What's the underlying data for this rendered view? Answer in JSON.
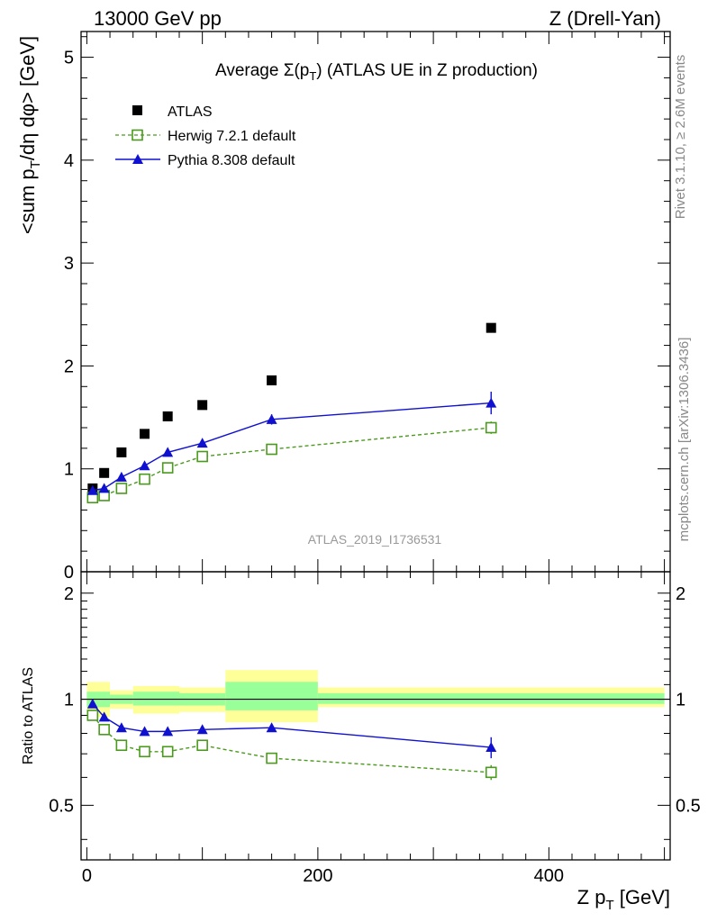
{
  "header": {
    "left": "13000 GeV pp",
    "right": "Z (Drell-Yan)"
  },
  "side": {
    "rivet": "Rivet 3.1.10, ≥ 2.6M events",
    "mcplots": "mcplots.cern.ch [arXiv:1306.3436]"
  },
  "chart_data": [
    {
      "type": "scatter",
      "title": "Average Σ(p_T) (ATLAS UE in Z production)",
      "title_main": "Average Σ(p",
      "title_sub": "T",
      "title_rest": ") (ATLAS UE in Z production)",
      "ylabel": "<sum p_T/dη dφ> [GeV]",
      "ylabel_main": "<sum p",
      "ylabel_sub": "T",
      "ylabel_rest": "/dη dφ> [GeV]",
      "xlim": [
        -5,
        505
      ],
      "ylim": [
        0,
        5.25
      ],
      "yticks": [
        0,
        1,
        2,
        3,
        4,
        5
      ],
      "ytick_labels": [
        "0",
        "1",
        "2",
        "3",
        "4",
        "5"
      ],
      "watermark": "ATLAS_2019_I1736531",
      "legend_position": "top-left",
      "legend": [
        "ATLAS",
        "Herwig 7.2.1 default",
        "Pythia 8.308 default"
      ],
      "series": [
        {
          "name": "ATLAS",
          "color": "#000000",
          "marker": "square-filled",
          "x": [
            5,
            15,
            30,
            50,
            70,
            100,
            160,
            350
          ],
          "y": [
            0.81,
            0.96,
            1.16,
            1.34,
            1.51,
            1.62,
            1.86,
            2.37
          ]
        },
        {
          "name": "Herwig 7.2.1 default",
          "color": "#4a9a1c",
          "marker": "square-open",
          "line": "dashed",
          "x": [
            5,
            15,
            30,
            50,
            70,
            100,
            160,
            350
          ],
          "y": [
            0.72,
            0.74,
            0.81,
            0.9,
            1.01,
            1.12,
            1.19,
            1.4
          ],
          "err": [
            0.02,
            0.02,
            0.02,
            0.02,
            0.02,
            0.02,
            0.03,
            0.06
          ]
        },
        {
          "name": "Pythia 8.308 default",
          "color": "#1010d0",
          "marker": "triangle-filled",
          "line": "solid",
          "x": [
            5,
            15,
            30,
            50,
            70,
            100,
            160,
            350
          ],
          "y": [
            0.79,
            0.81,
            0.92,
            1.03,
            1.16,
            1.25,
            1.48,
            1.64
          ],
          "err": [
            0.01,
            0.01,
            0.01,
            0.01,
            0.01,
            0.01,
            0.05,
            0.11
          ]
        }
      ]
    },
    {
      "type": "scatter",
      "ylabel": "Ratio to ATLAS",
      "xlabel": "Z p_T [GeV]",
      "xlabel_main": "Z p",
      "xlabel_sub": "T",
      "xlabel_rest": " [GeV]",
      "xlim": [
        -5,
        505
      ],
      "ylim": [
        0.35,
        2.3
      ],
      "xticks": [
        0,
        200,
        400
      ],
      "xtick_labels": [
        "0",
        "200",
        "400"
      ],
      "yticks": [
        0.5,
        1,
        2
      ],
      "ytick_labels": [
        "0.5",
        "1",
        "2"
      ],
      "bands": [
        {
          "x0": 0,
          "x1": 20,
          "y_lo": 0.89,
          "y_hi": 1.12,
          "ys_lo": 0.95,
          "ys_hi": 1.05
        },
        {
          "x0": 20,
          "x1": 40,
          "y_lo": 0.94,
          "y_hi": 1.06,
          "ys_lo": 0.97,
          "ys_hi": 1.03
        },
        {
          "x0": 40,
          "x1": 80,
          "y_lo": 0.91,
          "y_hi": 1.09,
          "ys_lo": 0.96,
          "ys_hi": 1.05
        },
        {
          "x0": 80,
          "x1": 120,
          "y_lo": 0.92,
          "y_hi": 1.08,
          "ys_lo": 0.96,
          "ys_hi": 1.04
        },
        {
          "x0": 120,
          "x1": 200,
          "y_lo": 0.86,
          "y_hi": 1.21,
          "ys_lo": 0.93,
          "ys_hi": 1.12
        },
        {
          "x0": 200,
          "x1": 500,
          "y_lo": 0.95,
          "y_hi": 1.08,
          "ys_lo": 0.97,
          "ys_hi": 1.04
        }
      ],
      "band_colors": {
        "total": "#ffff99",
        "stat": "#99ff99"
      },
      "series": [
        {
          "name": "Herwig 7.2.1 default",
          "color": "#4a9a1c",
          "x": [
            5,
            15,
            30,
            50,
            70,
            100,
            160,
            350
          ],
          "y": [
            0.9,
            0.82,
            0.74,
            0.71,
            0.71,
            0.74,
            0.68,
            0.62
          ],
          "err": [
            0.01,
            0.01,
            0.01,
            0.01,
            0.01,
            0.01,
            0.01,
            0.03
          ]
        },
        {
          "name": "Pythia 8.308 default",
          "color": "#1010d0",
          "x": [
            5,
            15,
            30,
            50,
            70,
            100,
            160,
            350
          ],
          "y": [
            0.97,
            0.89,
            0.83,
            0.81,
            0.81,
            0.82,
            0.83,
            0.73
          ],
          "err": [
            0.01,
            0.01,
            0.01,
            0.01,
            0.01,
            0.01,
            0.02,
            0.05
          ]
        }
      ]
    }
  ]
}
